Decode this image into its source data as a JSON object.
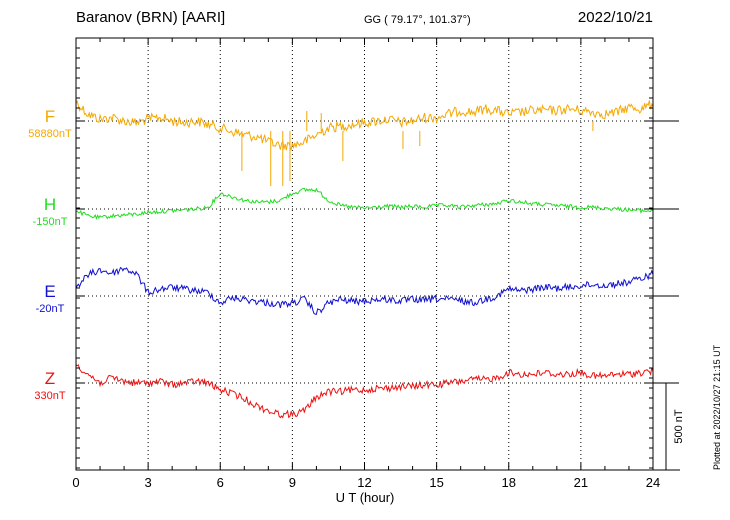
{
  "header": {
    "station": "Baranov (BRN)  [AARI]",
    "coords": "GG ( 79.17°, 101.37°)",
    "date": "2022/10/21"
  },
  "plotted_note": "Plotted at 2022/10/27 21:15 UT",
  "colors": {
    "F": "#f5a800",
    "H": "#22dd22",
    "E": "#1010d0",
    "Z": "#ee1111"
  },
  "chart_data": {
    "type": "line",
    "title": "Baranov (BRN)  [AARI]",
    "xlabel": "U T (hour)",
    "xlim": [
      0,
      24
    ],
    "x_ticks": [
      0,
      3,
      6,
      9,
      12,
      15,
      18,
      21,
      24
    ],
    "x_tick_labels": [
      "0",
      "3",
      "6",
      "9",
      "12",
      "15",
      "18",
      "21",
      "24"
    ],
    "grid": true,
    "scale_bar": {
      "label": "500 nT",
      "value_nT": 500
    },
    "series": [
      {
        "name": "F",
        "baseline_label": "58880nT",
        "baseline_nT": 58880,
        "x": [
          0,
          0.5,
          1,
          1.5,
          2,
          2.5,
          3,
          3.5,
          4,
          4.5,
          5,
          5.5,
          6,
          6.5,
          7,
          7.5,
          8,
          8.5,
          9,
          9.5,
          10,
          10.5,
          11,
          11.5,
          12,
          12.5,
          13,
          13.5,
          14,
          14.5,
          15,
          15.5,
          16,
          16.5,
          17,
          17.5,
          18,
          18.5,
          19,
          19.5,
          20,
          20.5,
          21,
          21.5,
          22,
          22.5,
          23,
          23.5,
          24
        ],
        "y": [
          58990,
          58920,
          58890,
          58900,
          58880,
          58870,
          58890,
          58900,
          58880,
          58870,
          58880,
          58860,
          58840,
          58820,
          58800,
          58790,
          58760,
          58740,
          58740,
          58760,
          58800,
          58840,
          58850,
          58860,
          58870,
          58880,
          58890,
          58870,
          58880,
          58900,
          58900,
          58920,
          58940,
          58930,
          58950,
          58940,
          58920,
          58930,
          58940,
          58940,
          58940,
          58950,
          58940,
          58930,
          58920,
          58930,
          58960,
          58950,
          58980
        ]
      },
      {
        "name": "H",
        "baseline_label": "-150nT",
        "baseline_nT": -150,
        "x": [
          0,
          0.5,
          1,
          1.5,
          2,
          2.5,
          3,
          3.5,
          4,
          4.5,
          5,
          5.5,
          6,
          6.5,
          7,
          7.5,
          8,
          8.5,
          9,
          9.5,
          10,
          10.5,
          11,
          11.5,
          12,
          12.5,
          13,
          13.5,
          14,
          14.5,
          15,
          15.5,
          16,
          16.5,
          17,
          17.5,
          18,
          18.5,
          19,
          19.5,
          20,
          20.5,
          21,
          21.5,
          22,
          22.5,
          23,
          23.5,
          24
        ],
        "y": [
          -160,
          -190,
          -200,
          -190,
          -185,
          -180,
          -170,
          -165,
          -160,
          -155,
          -150,
          -140,
          -60,
          -80,
          -100,
          -110,
          -110,
          -100,
          -60,
          -40,
          -40,
          -100,
          -130,
          -140,
          -145,
          -140,
          -135,
          -140,
          -135,
          -140,
          -130,
          -130,
          -140,
          -130,
          -125,
          -120,
          -100,
          -110,
          -120,
          -125,
          -130,
          -135,
          -140,
          -140,
          -145,
          -150,
          -155,
          -160,
          -160
        ]
      },
      {
        "name": "E",
        "baseline_label": "-20nT",
        "baseline_nT": -20,
        "x": [
          0,
          0.5,
          1,
          1.5,
          2,
          2.5,
          3,
          3.5,
          4,
          4.5,
          5,
          5.5,
          6,
          6.5,
          7,
          7.5,
          8,
          8.5,
          9,
          9.5,
          10,
          10.5,
          11,
          11.5,
          12,
          12.5,
          13,
          13.5,
          14,
          14.5,
          15,
          15.5,
          16,
          16.5,
          17,
          17.5,
          18,
          18.5,
          19,
          19.5,
          20,
          20.5,
          21,
          21.5,
          22,
          22.5,
          23,
          23.5,
          24
        ],
        "y": [
          30,
          100,
          130,
          110,
          140,
          110,
          0,
          20,
          30,
          20,
          10,
          0,
          -60,
          -30,
          -40,
          -50,
          -60,
          -70,
          -60,
          -40,
          -120,
          -60,
          -40,
          -50,
          -50,
          -40,
          -40,
          -50,
          -40,
          -45,
          -35,
          -40,
          -45,
          -60,
          -40,
          -20,
          20,
          10,
          20,
          30,
          25,
          30,
          40,
          45,
          40,
          50,
          60,
          80,
          110
        ]
      },
      {
        "name": "Z",
        "baseline_label": "330nT",
        "baseline_nT": 330,
        "x": [
          0,
          0.5,
          1,
          1.5,
          2,
          2.5,
          3,
          3.5,
          4,
          4.5,
          5,
          5.5,
          6,
          6.5,
          7,
          7.5,
          8,
          8.5,
          9,
          9.5,
          10,
          10.5,
          11,
          11.5,
          12,
          12.5,
          13,
          13.5,
          14,
          14.5,
          15,
          15.5,
          16,
          16.5,
          17,
          17.5,
          18,
          18.5,
          19,
          19.5,
          20,
          20.5,
          21,
          21.5,
          22,
          22.5,
          23,
          23.5,
          24
        ],
        "y": [
          440,
          380,
          330,
          360,
          340,
          330,
          330,
          340,
          320,
          330,
          340,
          330,
          290,
          270,
          240,
          200,
          170,
          150,
          150,
          170,
          250,
          280,
          280,
          290,
          290,
          300,
          300,
          310,
          310,
          320,
          320,
          330,
          340,
          350,
          350,
          360,
          390,
          380,
          380,
          390,
          380,
          380,
          390,
          370,
          370,
          380,
          380,
          390,
          400
        ]
      }
    ]
  }
}
